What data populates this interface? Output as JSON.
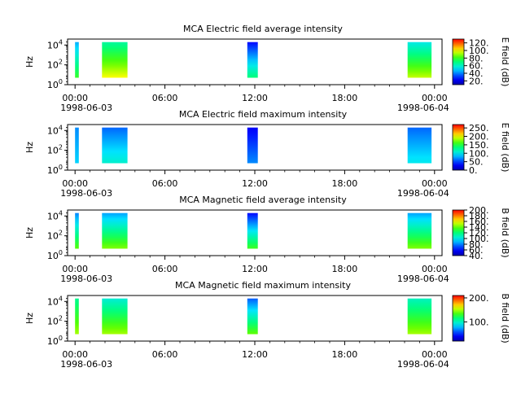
{
  "chart_data": [
    {
      "type": "heatmap",
      "title": "MCA  Electric field average intensity",
      "ylabel": "Hz",
      "ytick_labels": [
        "10^0",
        "10^2",
        "10^4"
      ],
      "x_tick_labels": [
        "00:00",
        "06:00",
        "12:00",
        "18:00",
        "00:00"
      ],
      "x_date_labels": [
        "1998-06-03",
        "1998-06-04"
      ],
      "xlim_hours": [
        -0.5,
        24.5
      ],
      "ylim_log10": [
        0,
        4.6
      ],
      "colorbar": {
        "label": "E field (dB)",
        "range": [
          10,
          130
        ],
        "tick_labels": [
          "20.",
          "40.",
          "60.",
          "80.",
          "100.",
          "120."
        ],
        "tick_values": [
          20,
          40,
          60,
          80,
          100,
          120
        ]
      },
      "segments": [
        {
          "start_hour": 0.0,
          "end_hour": 0.25,
          "low_value": 80,
          "high_value": 45
        },
        {
          "start_hour": 1.8,
          "end_hour": 3.5,
          "low_value": 100,
          "high_value": 65
        },
        {
          "start_hour": 11.5,
          "end_hour": 12.2,
          "low_value": 70,
          "high_value": 25
        },
        {
          "start_hour": 22.2,
          "end_hour": 23.8,
          "low_value": 95,
          "high_value": 55
        }
      ]
    },
    {
      "type": "heatmap",
      "title": "MCA  Electric field maximum intensity",
      "ylabel": "Hz",
      "ytick_labels": [
        "10^0",
        "10^2",
        "10^4"
      ],
      "x_tick_labels": [
        "00:00",
        "06:00",
        "12:00",
        "18:00",
        "00:00"
      ],
      "x_date_labels": [
        "1998-06-03",
        "1998-06-04"
      ],
      "xlim_hours": [
        -0.5,
        24.5
      ],
      "ylim_log10": [
        0,
        4.6
      ],
      "colorbar": {
        "label": "E field (dB)",
        "range": [
          0,
          270
        ],
        "tick_labels": [
          "0.",
          "50.",
          "100.",
          "150.",
          "200.",
          "250."
        ],
        "tick_values": [
          0,
          50,
          100,
          150,
          200,
          250
        ]
      },
      "segments": [
        {
          "start_hour": 0.0,
          "end_hour": 0.25,
          "low_value": 90,
          "high_value": 70
        },
        {
          "start_hour": 1.8,
          "end_hour": 3.5,
          "low_value": 110,
          "high_value": 60
        },
        {
          "start_hour": 11.5,
          "end_hour": 12.2,
          "low_value": 70,
          "high_value": 30
        },
        {
          "start_hour": 22.2,
          "end_hour": 23.8,
          "low_value": 100,
          "high_value": 60
        }
      ]
    },
    {
      "type": "heatmap",
      "title": "MCA  Magnetic field average intensity",
      "ylabel": "Hz",
      "ytick_labels": [
        "10^0",
        "10^2",
        "10^4"
      ],
      "x_tick_labels": [
        "00:00",
        "06:00",
        "12:00",
        "18:00",
        "00:00"
      ],
      "x_date_labels": [
        "1998-06-03",
        "1998-06-04"
      ],
      "xlim_hours": [
        -0.5,
        24.5
      ],
      "ylim_log10": [
        0,
        4.6
      ],
      "colorbar": {
        "label": "B field (dB)",
        "range": [
          40,
          200
        ],
        "tick_labels": [
          "40.",
          "60.",
          "80.",
          "100.",
          "120.",
          "140.",
          "160.",
          "180.",
          "200."
        ],
        "tick_values": [
          40,
          60,
          80,
          100,
          120,
          140,
          160,
          180,
          200
        ]
      },
      "segments": [
        {
          "start_hour": 0.0,
          "end_hour": 0.25,
          "low_value": 140,
          "high_value": 80
        },
        {
          "start_hour": 1.8,
          "end_hour": 3.5,
          "low_value": 145,
          "high_value": 85
        },
        {
          "start_hour": 11.5,
          "end_hour": 12.2,
          "low_value": 135,
          "high_value": 60
        },
        {
          "start_hour": 22.2,
          "end_hour": 23.8,
          "low_value": 145,
          "high_value": 85
        }
      ]
    },
    {
      "type": "heatmap",
      "title": "MCA  Magnetic field maximum intensity",
      "ylabel": "Hz",
      "ytick_labels": [
        "10^0",
        "10^2",
        "10^4"
      ],
      "x_tick_labels": [
        "00:00",
        "06:00",
        "12:00",
        "18:00",
        "00:00"
      ],
      "x_date_labels": [
        "1998-06-03",
        "1998-06-04"
      ],
      "xlim_hours": [
        -0.5,
        24.5
      ],
      "ylim_log10": [
        0,
        4.6
      ],
      "colorbar": {
        "label": "B field (dB)",
        "range": [
          20,
          210
        ],
        "tick_labels": [
          "100.",
          "200."
        ],
        "tick_values": [
          100,
          200
        ]
      },
      "segments": [
        {
          "start_hour": 0.0,
          "end_hour": 0.25,
          "low_value": 150,
          "high_value": 110
        },
        {
          "start_hour": 1.8,
          "end_hour": 3.5,
          "low_value": 150,
          "high_value": 95
        },
        {
          "start_hour": 11.5,
          "end_hour": 12.2,
          "low_value": 140,
          "high_value": 60
        },
        {
          "start_hour": 22.2,
          "end_hour": 23.8,
          "low_value": 150,
          "high_value": 100
        }
      ]
    }
  ]
}
